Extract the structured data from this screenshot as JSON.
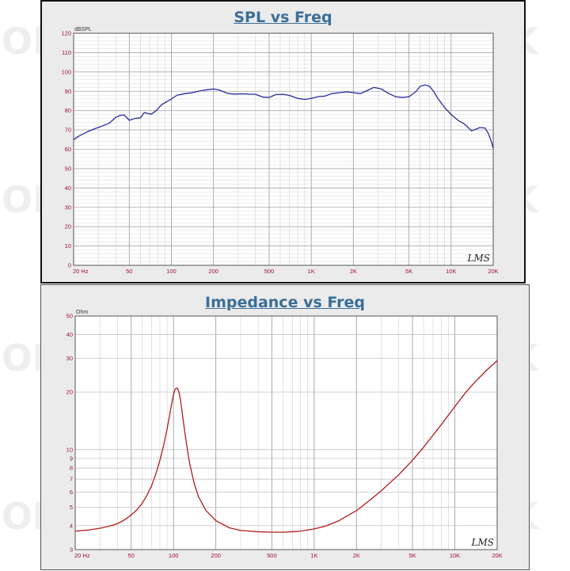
{
  "watermark_text": "OK",
  "chart_data": [
    {
      "type": "line",
      "title": "SPL vs Freq",
      "xlabel": "",
      "ylabel": "dBSPL",
      "x_scale": "log",
      "xlim": [
        20,
        20000
      ],
      "ylim": [
        0,
        120
      ],
      "y_ticks": [
        0,
        10,
        20,
        30,
        40,
        50,
        60,
        70,
        80,
        90,
        100,
        110,
        120
      ],
      "x_tick_labels": [
        {
          "value": 20,
          "label": "20 Hz"
        },
        {
          "value": 50,
          "label": "50"
        },
        {
          "value": 100,
          "label": "100"
        },
        {
          "value": 200,
          "label": "200"
        },
        {
          "value": 500,
          "label": "500"
        },
        {
          "value": 1000,
          "label": "1K"
        },
        {
          "value": 2000,
          "label": "2K"
        },
        {
          "value": 5000,
          "label": "5K"
        },
        {
          "value": 10000,
          "label": "10K"
        },
        {
          "value": 20000,
          "label": "20K"
        }
      ],
      "grid": true,
      "signature": "LMS",
      "line_color": "#2a2aa0",
      "series": [
        {
          "x": [
            20,
            22,
            25,
            28,
            32,
            36,
            40,
            43,
            46,
            50,
            55,
            60,
            64,
            68,
            72,
            78,
            85,
            92,
            100,
            110,
            125,
            140,
            160,
            180,
            200,
            220,
            250,
            280,
            320,
            360,
            400,
            450,
            500,
            560,
            630,
            700,
            800,
            900,
            1000,
            1120,
            1250,
            1400,
            1600,
            1800,
            2000,
            2250,
            2500,
            2800,
            3150,
            3550,
            4000,
            4500,
            5000,
            5600,
            6000,
            6500,
            7000,
            7500,
            8000,
            9000,
            10000,
            11200,
            12500,
            14000,
            16000,
            17500,
            18500,
            19500,
            20000
          ],
          "y": [
            65,
            67,
            69,
            70.5,
            72,
            73.5,
            76.5,
            77.5,
            77.8,
            75,
            76,
            76.2,
            79,
            78.5,
            78.2,
            80,
            83,
            84.5,
            86,
            88,
            88.8,
            89.2,
            90.2,
            90.8,
            91.2,
            90.6,
            89,
            88.5,
            88.7,
            88.5,
            88.4,
            87,
            86.8,
            88.3,
            88.4,
            87.8,
            86.3,
            85.8,
            86.3,
            87.2,
            87.5,
            88.8,
            89.3,
            89.7,
            89.3,
            88.8,
            90.3,
            92,
            91.3,
            89,
            87.2,
            86.8,
            87.2,
            89.8,
            92.5,
            93.3,
            92.6,
            90,
            86.5,
            81.5,
            78,
            75,
            73,
            69.5,
            71.2,
            71,
            68,
            63.5,
            60.5
          ]
        }
      ]
    },
    {
      "type": "line",
      "title": "Impedance vs Freq",
      "xlabel": "",
      "ylabel": "Ohm",
      "x_scale": "log",
      "y_scale": "log",
      "xlim": [
        20,
        20000
      ],
      "ylim": [
        3,
        50
      ],
      "y_ticks": [
        3,
        4,
        5,
        6,
        7,
        8,
        9,
        10,
        20,
        30,
        40,
        50
      ],
      "x_tick_labels": [
        {
          "value": 20,
          "label": "20 Hz"
        },
        {
          "value": 50,
          "label": "50"
        },
        {
          "value": 100,
          "label": "100"
        },
        {
          "value": 200,
          "label": "200"
        },
        {
          "value": 500,
          "label": "500"
        },
        {
          "value": 1000,
          "label": "1K"
        },
        {
          "value": 2000,
          "label": "2K"
        },
        {
          "value": 5000,
          "label": "5K"
        },
        {
          "value": 10000,
          "label": "10K"
        },
        {
          "value": 20000,
          "label": "20K"
        }
      ],
      "grid": true,
      "signature": "LMS",
      "line_color": "#b01c1c",
      "series": [
        {
          "x": [
            20,
            25,
            30,
            35,
            40,
            45,
            50,
            55,
            60,
            65,
            70,
            75,
            80,
            85,
            90,
            95,
            100,
            103,
            106,
            109,
            112,
            115,
            120,
            125,
            130,
            140,
            150,
            170,
            200,
            250,
            300,
            400,
            500,
            600,
            700,
            800,
            1000,
            1200,
            1500,
            2000,
            2500,
            3000,
            4000,
            5000,
            6000,
            7000,
            8000,
            10000,
            12000,
            14000,
            17000,
            20000
          ],
          "y": [
            3.75,
            3.8,
            3.88,
            3.98,
            4.1,
            4.3,
            4.55,
            4.85,
            5.25,
            5.8,
            6.5,
            7.5,
            8.8,
            10.5,
            12.8,
            16,
            19.5,
            20.8,
            21,
            20.2,
            18.2,
            15.8,
            12.5,
            10.2,
            8.5,
            6.7,
            5.7,
            4.8,
            4.25,
            3.9,
            3.78,
            3.72,
            3.7,
            3.7,
            3.72,
            3.75,
            3.85,
            3.98,
            4.25,
            4.8,
            5.45,
            6.1,
            7.4,
            8.8,
            10.3,
            11.9,
            13.5,
            16.8,
            20,
            22.7,
            26.2,
            29.2
          ]
        }
      ]
    }
  ]
}
